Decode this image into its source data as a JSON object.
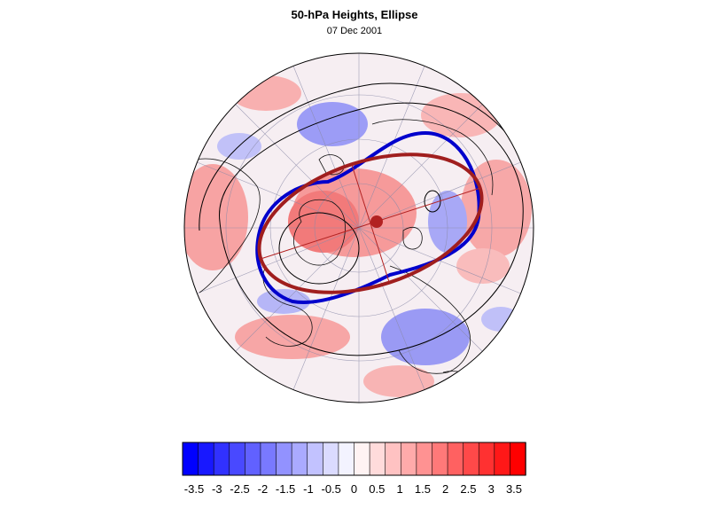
{
  "header": {
    "title": "50-hPa Heights, Ellipse",
    "date": "07 Dec 2001"
  },
  "colorbar": {
    "tick_labels": [
      "-3.5",
      "-3",
      "-2.5",
      "-2",
      "-1.5",
      "-1",
      "-0.5",
      "0",
      "0.5",
      "1",
      "1.5",
      "2",
      "2.5",
      "3",
      "3.5"
    ],
    "levels": 22,
    "min_color": "#0000ff",
    "mid_color": "#ffffff",
    "max_color": "#ff0000"
  },
  "colors": {
    "contour_line": "#000000",
    "vortex_edge": "#0000cc",
    "ellipse_fit": "#a01e1e",
    "ellipse_center": "#b22222",
    "positive_anomaly": "#ff6f6f",
    "negative_anomaly": "#6f6fff"
  }
}
